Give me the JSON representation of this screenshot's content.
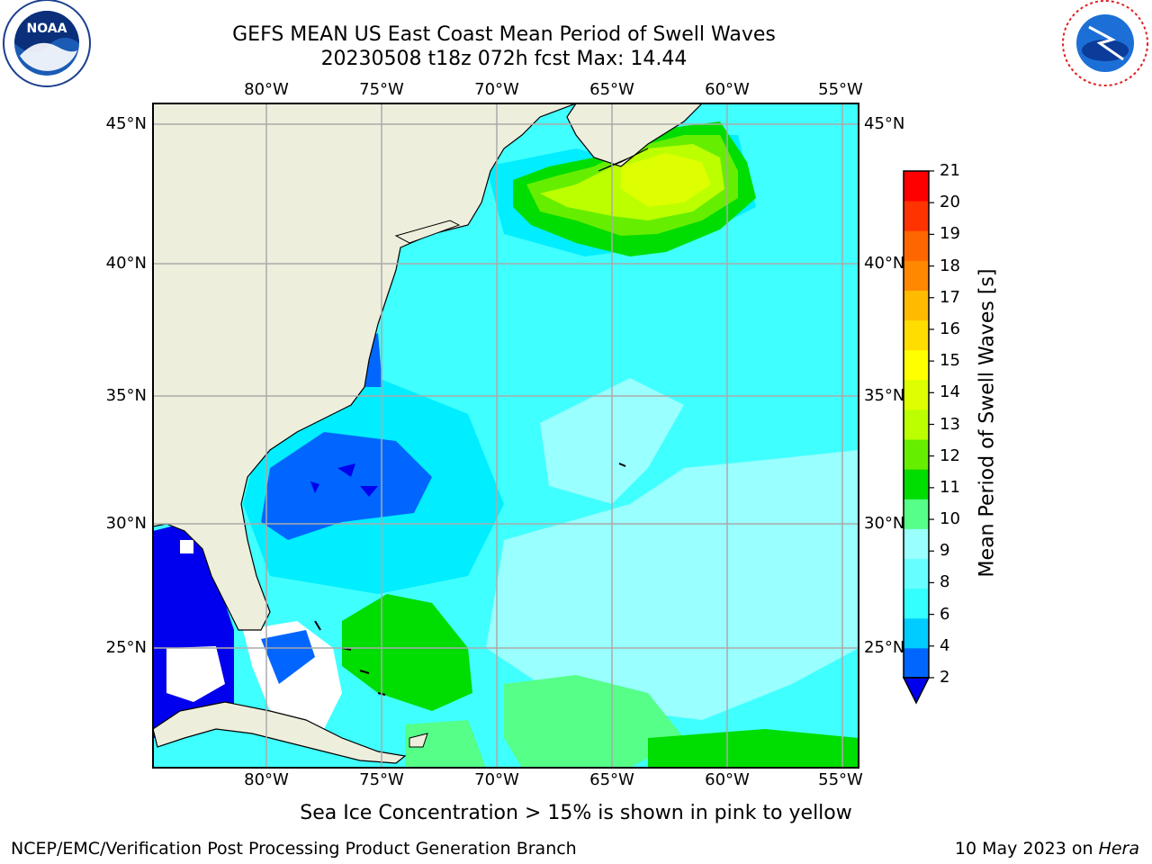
{
  "title_line1": "GEFS MEAN US East Coast Mean Period of Swell Waves",
  "title_line2": "20230508 t18z 072h fcst   Max: 14.44",
  "lon_labels": [
    "80°W",
    "75°W",
    "70°W",
    "65°W",
    "60°W",
    "55°W"
  ],
  "lat_labels": [
    "45°N",
    "40°N",
    "35°N",
    "30°N",
    "25°N"
  ],
  "colorbar": {
    "label": "Mean Period of Swell Waves [s]",
    "ticks": [
      "2",
      "4",
      "6",
      "8",
      "9",
      "10",
      "11",
      "12",
      "13",
      "14",
      "15",
      "16",
      "17",
      "18",
      "19",
      "20",
      "21"
    ],
    "colors": [
      "#0066ff",
      "#00ccff",
      "#33ffff",
      "#66ffff",
      "#99ffff",
      "#55ff88",
      "#00dd00",
      "#66ee00",
      "#bbff00",
      "#ddff00",
      "#ffff00",
      "#ffdd00",
      "#ffbb00",
      "#ff8800",
      "#ff6600",
      "#ff3300",
      "#ff0000"
    ],
    "under_color": "#0000ee"
  },
  "footer_note": "Sea Ice Concentration > 15% is shown in pink to yellow",
  "credit": "NCEP/EMC/Verification Post Processing Product Generation Branch",
  "run_date": "10 May 2023 on",
  "run_host": "Hera",
  "logo_left_text": "NOAA",
  "logo_right_text": "NATIONAL WEATHER SERVICE"
}
